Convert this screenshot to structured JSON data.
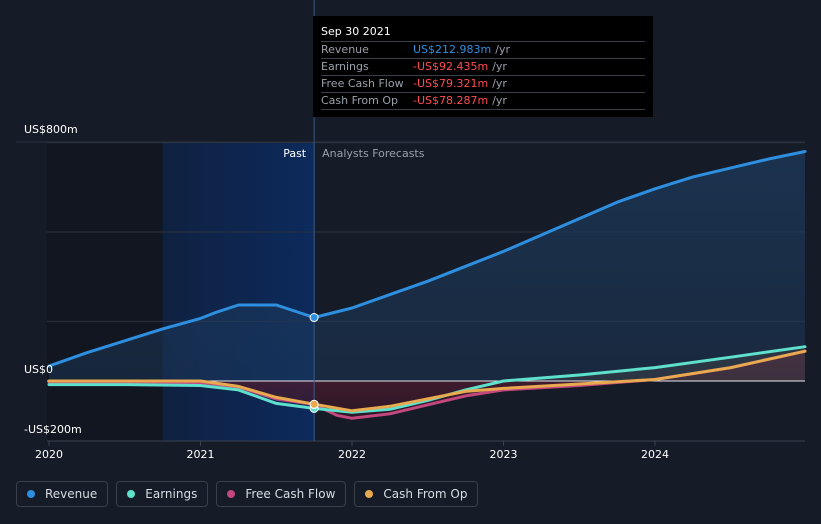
{
  "chart_data": {
    "type": "line",
    "x_unit": "year",
    "y_unit": "US$ millions",
    "ylim": [
      -200,
      800
    ],
    "xlim": [
      2020,
      2025
    ],
    "y_tick_labels": [
      {
        "value": 800,
        "label": "US$800m"
      },
      {
        "value": 0,
        "label": "US$0"
      },
      {
        "value": -200,
        "label": "-US$200m"
      }
    ],
    "x_ticks": [
      {
        "value": 2020,
        "label": "2020"
      },
      {
        "value": 2021,
        "label": "2021"
      },
      {
        "value": 2022,
        "label": "2022"
      },
      {
        "value": 2023,
        "label": "2023"
      },
      {
        "value": 2024,
        "label": "2024"
      }
    ],
    "divider_x": 2021.75,
    "past_label": "Past",
    "forecast_label": "Analysts Forecasts",
    "series": [
      {
        "name": "Revenue",
        "color": "#2e8fe0",
        "points": [
          [
            2020,
            50
          ],
          [
            2020.25,
            95
          ],
          [
            2020.5,
            135
          ],
          [
            2020.75,
            175
          ],
          [
            2021,
            210
          ],
          [
            2021.1,
            230
          ],
          [
            2021.25,
            255
          ],
          [
            2021.5,
            255
          ],
          [
            2021.75,
            213
          ],
          [
            2022,
            245
          ],
          [
            2022.25,
            290
          ],
          [
            2022.5,
            335
          ],
          [
            2022.75,
            385
          ],
          [
            2023,
            435
          ],
          [
            2023.25,
            490
          ],
          [
            2023.5,
            545
          ],
          [
            2023.75,
            600
          ],
          [
            2024,
            645
          ],
          [
            2024.25,
            685
          ],
          [
            2024.5,
            715
          ],
          [
            2024.75,
            745
          ],
          [
            2024.99,
            770
          ]
        ]
      },
      {
        "name": "Earnings",
        "color": "#5ee0cc",
        "points": [
          [
            2020,
            -12
          ],
          [
            2020.5,
            -12
          ],
          [
            2021,
            -15
          ],
          [
            2021.25,
            -30
          ],
          [
            2021.5,
            -75
          ],
          [
            2021.75,
            -92
          ],
          [
            2022,
            -105
          ],
          [
            2022.25,
            -95
          ],
          [
            2022.5,
            -65
          ],
          [
            2022.75,
            -30
          ],
          [
            2023,
            0
          ],
          [
            2023.5,
            20
          ],
          [
            2024,
            45
          ],
          [
            2024.5,
            80
          ],
          [
            2024.99,
            115
          ]
        ]
      },
      {
        "name": "Free Cash Flow",
        "color": "#c2487e",
        "points": [
          [
            2020,
            -5
          ],
          [
            2020.5,
            -5
          ],
          [
            2021,
            -5
          ],
          [
            2021.25,
            -20
          ],
          [
            2021.5,
            -60
          ],
          [
            2021.75,
            -79
          ],
          [
            2021.9,
            -115
          ],
          [
            2022,
            -125
          ],
          [
            2022.25,
            -110
          ],
          [
            2022.5,
            -80
          ],
          [
            2022.75,
            -50
          ],
          [
            2023,
            -30
          ],
          [
            2023.5,
            -15
          ],
          [
            2024,
            5
          ],
          [
            2024.5,
            45
          ],
          [
            2024.99,
            100
          ]
        ]
      },
      {
        "name": "Cash From Op",
        "color": "#e8a94f",
        "points": [
          [
            2020,
            0
          ],
          [
            2020.5,
            0
          ],
          [
            2021,
            0
          ],
          [
            2021.25,
            -18
          ],
          [
            2021.5,
            -55
          ],
          [
            2021.75,
            -78
          ],
          [
            2022,
            -100
          ],
          [
            2022.25,
            -85
          ],
          [
            2022.5,
            -60
          ],
          [
            2022.75,
            -35
          ],
          [
            2023,
            -25
          ],
          [
            2023.5,
            -10
          ],
          [
            2024,
            5
          ],
          [
            2024.5,
            45
          ],
          [
            2024.99,
            100
          ]
        ]
      }
    ]
  },
  "tooltip": {
    "date": "Sep 30 2021",
    "rows": [
      {
        "label": "Revenue",
        "value": "US$212.983m",
        "unit": "/yr",
        "color": "#2e8fe0"
      },
      {
        "label": "Earnings",
        "value": "-US$92.435m",
        "unit": "/yr",
        "color": "#ff4d4d"
      },
      {
        "label": "Free Cash Flow",
        "value": "-US$79.321m",
        "unit": "/yr",
        "color": "#ff4d4d"
      },
      {
        "label": "Cash From Op",
        "value": "-US$78.287m",
        "unit": "/yr",
        "color": "#ff4d4d"
      }
    ]
  },
  "legend": [
    {
      "label": "Revenue",
      "color": "#2e8fe0"
    },
    {
      "label": "Earnings",
      "color": "#5ee0cc"
    },
    {
      "label": "Free Cash Flow",
      "color": "#c2487e"
    },
    {
      "label": "Cash From Op",
      "color": "#e8a94f"
    }
  ]
}
